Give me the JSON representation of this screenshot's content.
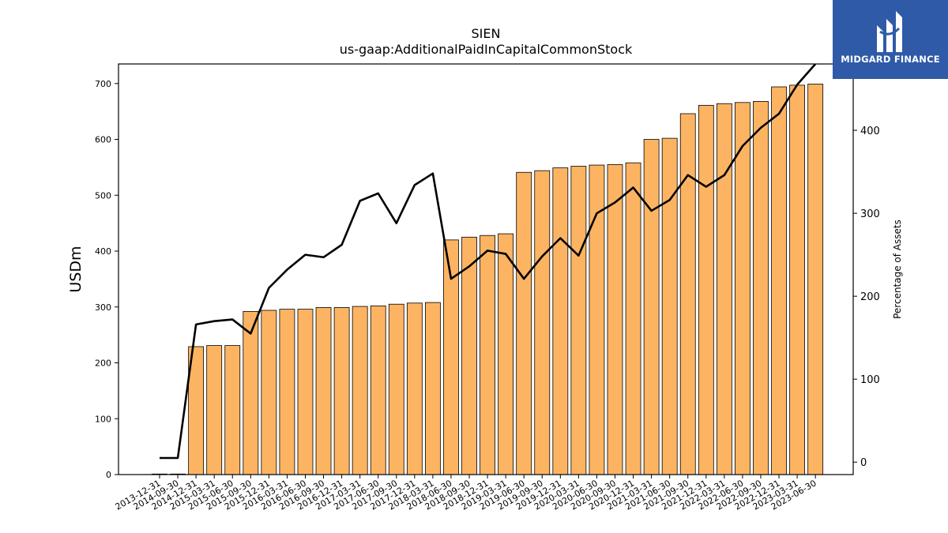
{
  "chart_data": {
    "type": "bar",
    "title": "SIEN",
    "subtitle": "us-gaap:AdditionalPaidInCapitalCommonStock",
    "ylabel": "USDm",
    "y2label": "Percentage of Assets",
    "ylim": [
      0,
      735
    ],
    "y2lim": [
      -15,
      480
    ],
    "yticks": [
      0,
      100,
      200,
      300,
      400,
      500,
      600,
      700
    ],
    "y2ticks": [
      0,
      100,
      200,
      300,
      400
    ],
    "grid": false,
    "categories": [
      "2013-12-31",
      "2014-09-30",
      "2014-12-31",
      "2015-03-31",
      "2015-06-30",
      "2015-09-30",
      "2015-12-31",
      "2016-03-31",
      "2016-06-30",
      "2016-09-30",
      "2016-12-31",
      "2017-03-31",
      "2017-06-30",
      "2017-09-30",
      "2017-12-31",
      "2018-03-31",
      "2018-06-30",
      "2018-09-30",
      "2018-12-31",
      "2019-03-31",
      "2019-06-30",
      "2019-09-30",
      "2019-12-31",
      "2020-03-31",
      "2020-06-30",
      "2020-09-30",
      "2020-12-31",
      "2021-03-31",
      "2021-06-30",
      "2021-09-30",
      "2021-12-31",
      "2022-03-31",
      "2022-06-30",
      "2022-09-30",
      "2022-12-31",
      "2023-03-31",
      "2023-06-30"
    ],
    "series": [
      {
        "type": "bar",
        "axis": "left",
        "color": "#fdb462",
        "values": [
          1,
          1,
          229,
          231,
          231,
          292,
          294,
          296,
          296,
          299,
          299,
          301,
          302,
          305,
          307,
          308,
          420,
          425,
          428,
          431,
          541,
          544,
          549,
          552,
          554,
          555,
          558,
          600,
          602,
          646,
          661,
          664,
          666,
          668,
          694,
          697,
          699
        ]
      },
      {
        "type": "line",
        "axis": "right",
        "color": "#000000",
        "values": [
          5,
          5,
          166,
          170,
          172,
          155,
          210,
          232,
          250,
          247,
          262,
          315,
          324,
          288,
          334,
          348,
          221,
          236,
          255,
          251,
          221,
          248,
          270,
          249,
          300,
          313,
          331,
          303,
          316,
          346,
          332,
          346,
          381,
          403,
          420,
          455,
          480
        ]
      }
    ]
  },
  "logo": {
    "text": "MIDGARD FINANCE",
    "color": "#2f5aa8"
  }
}
